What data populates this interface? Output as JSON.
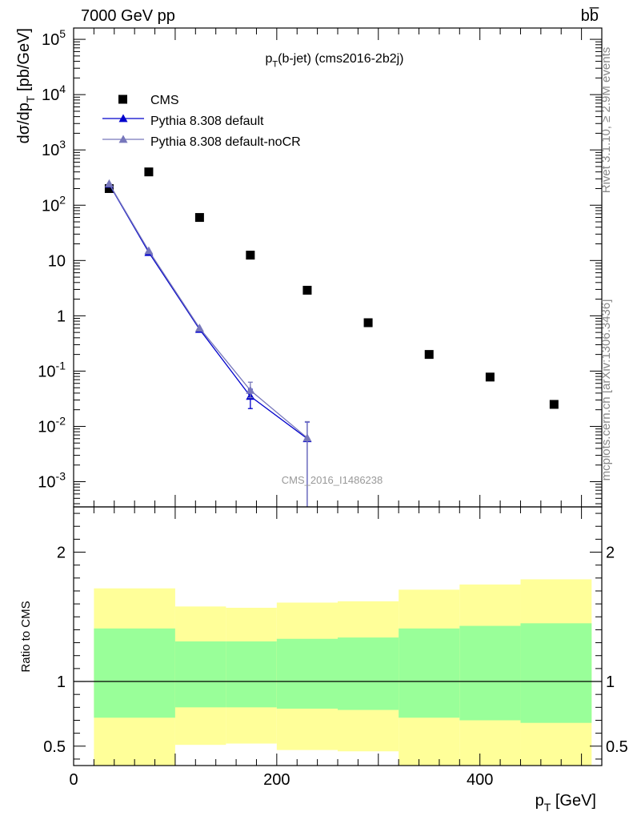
{
  "header": {
    "left": "7000 GeV pp",
    "right": "bb̅"
  },
  "side_labels": {
    "rivet": "Rivet 3.1.10, ≥ 2.9M events",
    "mcplots": "mcplots.cern.ch [arXiv:1306.3436]"
  },
  "chart_data": [
    {
      "type": "scatter",
      "panel": "main",
      "title": "p_T(b-jet) (cms2016-2b2j)",
      "xlabel": "p_T [GeV]",
      "ylabel": "dσ/dp_T [pb/GeV]",
      "watermark": "CMS_2016_I1486238",
      "xlim": [
        0,
        520
      ],
      "ylim": [
        0.00035,
        160000
      ],
      "yscale": "log",
      "legend_position": "top-left",
      "legend": [
        {
          "name": "CMS",
          "marker": "square",
          "color": "#000000"
        },
        {
          "name": "Pythia 8.308 default",
          "marker": "triangle",
          "color": "#0000cc"
        },
        {
          "name": "Pythia 8.308 default-noCR",
          "marker": "triangle",
          "color": "#7777bb"
        }
      ],
      "y_ticks": [
        {
          "v": 100000,
          "label": "10^5"
        },
        {
          "v": 10000,
          "label": "10^4"
        },
        {
          "v": 1000,
          "label": "10^3"
        },
        {
          "v": 100,
          "label": "10^2"
        },
        {
          "v": 10,
          "label": "10"
        },
        {
          "v": 1,
          "label": "1"
        },
        {
          "v": 0.1,
          "label": "10^-1"
        },
        {
          "v": 0.01,
          "label": "10^-2"
        },
        {
          "v": 0.001,
          "label": "10^-3"
        }
      ],
      "series": [
        {
          "name": "CMS",
          "color": "#000000",
          "x": [
            35,
            74,
            124,
            174,
            230,
            290,
            350,
            410,
            473
          ],
          "y": [
            200,
            400,
            60,
            12.5,
            2.9,
            0.75,
            0.2,
            0.078,
            0.025
          ]
        },
        {
          "name": "Pythia 8.308 default",
          "color": "#0000cc",
          "x": [
            35,
            74,
            124,
            174,
            230
          ],
          "y": [
            240,
            14,
            0.57,
            0.035,
            0.006
          ],
          "err_low": [
            0,
            0,
            0,
            0.014,
            0.0062
          ],
          "err_high": [
            0,
            0,
            0,
            0.012,
            0.006
          ]
        },
        {
          "name": "Pythia 8.308 default-noCR",
          "color": "#7777bb",
          "x": [
            35,
            74,
            124,
            174,
            230
          ],
          "y": [
            245,
            15,
            0.6,
            0.045,
            0.0062
          ],
          "err_low": [
            0,
            0,
            0,
            0.012,
            0.0063
          ],
          "err_high": [
            0,
            0,
            0,
            0.018,
            0.006
          ]
        }
      ]
    },
    {
      "type": "area",
      "panel": "ratio",
      "ylabel": "Ratio to CMS",
      "xlabel": "p_T [GeV]",
      "xlim": [
        0,
        520
      ],
      "ylim": [
        0.35,
        2.35
      ],
      "x_ticks": [
        0,
        200,
        400
      ],
      "y_ticks": [
        0.5,
        1,
        2
      ],
      "reference_line": 1,
      "bins": [
        {
          "x0": 20,
          "x1": 100,
          "inner": [
            0.72,
            1.41
          ],
          "outer": [
            0.3,
            1.72
          ]
        },
        {
          "x0": 100,
          "x1": 150,
          "inner": [
            0.8,
            1.31
          ],
          "outer": [
            0.51,
            1.58
          ]
        },
        {
          "x0": 150,
          "x1": 200,
          "inner": [
            0.8,
            1.31
          ],
          "outer": [
            0.52,
            1.57
          ]
        },
        {
          "x0": 200,
          "x1": 260,
          "inner": [
            0.79,
            1.33
          ],
          "outer": [
            0.47,
            1.61
          ]
        },
        {
          "x0": 260,
          "x1": 320,
          "inner": [
            0.78,
            1.34
          ],
          "outer": [
            0.46,
            1.62
          ]
        },
        {
          "x0": 320,
          "x1": 380,
          "inner": [
            0.72,
            1.41
          ],
          "outer": [
            0.3,
            1.71
          ]
        },
        {
          "x0": 380,
          "x1": 440,
          "inner": [
            0.7,
            1.43
          ],
          "outer": [
            0.3,
            1.75
          ]
        },
        {
          "x0": 440,
          "x1": 510,
          "inner": [
            0.68,
            1.45
          ],
          "outer": [
            0.3,
            1.79
          ]
        }
      ],
      "colors": {
        "inner": "#99ff99",
        "outer": "#ffff99"
      }
    }
  ]
}
